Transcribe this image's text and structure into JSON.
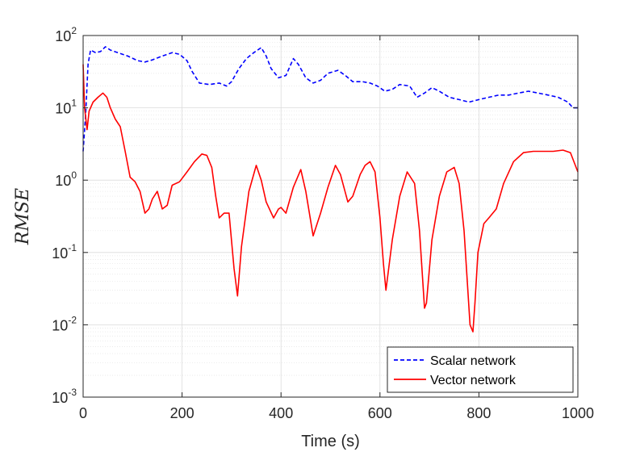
{
  "chart_data": {
    "type": "line",
    "xlabel": "Time (s)",
    "ylabel": "RMSE",
    "x_range": [
      0,
      1000
    ],
    "y_range": [
      0.001,
      100
    ],
    "y_scale": "log",
    "grid": true,
    "minor_grid": true,
    "legend_position": "bottom-right",
    "x_ticks": [
      {
        "value": 0,
        "label": "0"
      },
      {
        "value": 200,
        "label": "200"
      },
      {
        "value": 400,
        "label": "400"
      },
      {
        "value": 600,
        "label": "600"
      },
      {
        "value": 800,
        "label": "800"
      },
      {
        "value": 1000,
        "label": "1000"
      }
    ],
    "y_ticks": [
      {
        "value": 100,
        "base": "10",
        "exp": "2"
      },
      {
        "value": 10,
        "base": "10",
        "exp": "1"
      },
      {
        "value": 1,
        "base": "10",
        "exp": "0"
      },
      {
        "value": 0.1,
        "base": "10",
        "exp": "-1"
      },
      {
        "value": 0.01,
        "base": "10",
        "exp": "-2"
      },
      {
        "value": 0.001,
        "base": "10",
        "exp": "-3"
      }
    ],
    "series": [
      {
        "name": "Scalar network",
        "color": "#0000ff",
        "dash": "dashed",
        "x": [
          0,
          5,
          10,
          15,
          25,
          35,
          45,
          55,
          70,
          90,
          110,
          125,
          140,
          160,
          180,
          195,
          210,
          220,
          235,
          255,
          275,
          290,
          300,
          315,
          330,
          345,
          360,
          370,
          380,
          395,
          410,
          425,
          435,
          450,
          465,
          480,
          495,
          515,
          530,
          545,
          565,
          580,
          595,
          610,
          625,
          640,
          660,
          675,
          690,
          705,
          720,
          740,
          760,
          780,
          800,
          820,
          840,
          860,
          880,
          900,
          920,
          940,
          960,
          980,
          990,
          1000
        ],
        "y": [
          2.5,
          8,
          40,
          63,
          58,
          60,
          70,
          63,
          58,
          52,
          45,
          43,
          46,
          52,
          58,
          55,
          45,
          32,
          22,
          21,
          22,
          20,
          23,
          35,
          48,
          58,
          68,
          52,
          35,
          26,
          28,
          48,
          40,
          26,
          22,
          24,
          30,
          33,
          28,
          23,
          23,
          22,
          20,
          17,
          18,
          21,
          20,
          14,
          16,
          19,
          17,
          14,
          13,
          12,
          13,
          14,
          15,
          15,
          16,
          17,
          16,
          15,
          14,
          12,
          10,
          10
        ]
      },
      {
        "name": "Vector network",
        "color": "#ff0000",
        "dash": "solid",
        "x": [
          0,
          3,
          8,
          12,
          20,
          30,
          40,
          48,
          55,
          65,
          75,
          85,
          95,
          105,
          115,
          125,
          133,
          140,
          150,
          160,
          170,
          180,
          195,
          210,
          225,
          240,
          250,
          260,
          268,
          275,
          285,
          295,
          305,
          312,
          320,
          335,
          350,
          360,
          370,
          385,
          395,
          400,
          410,
          425,
          440,
          450,
          465,
          480,
          495,
          510,
          520,
          535,
          545,
          560,
          570,
          580,
          590,
          600,
          607,
          612,
          625,
          640,
          655,
          670,
          680,
          690,
          694,
          705,
          720,
          735,
          750,
          760,
          770,
          782,
          788,
          792,
          798,
          810,
          820,
          835,
          850,
          870,
          890,
          910,
          930,
          950,
          970,
          985,
          1000
        ],
        "y": [
          40,
          10,
          5,
          9,
          12,
          14,
          16,
          14,
          10,
          7,
          5.5,
          2.5,
          1.1,
          0.95,
          0.7,
          0.35,
          0.4,
          0.55,
          0.7,
          0.4,
          0.45,
          0.85,
          0.95,
          1.3,
          1.8,
          2.3,
          2.2,
          1.5,
          0.6,
          0.3,
          0.35,
          0.35,
          0.06,
          0.025,
          0.12,
          0.7,
          1.6,
          1.0,
          0.5,
          0.3,
          0.4,
          0.42,
          0.35,
          0.8,
          1.4,
          0.7,
          0.17,
          0.35,
          0.8,
          1.6,
          1.2,
          0.5,
          0.6,
          1.2,
          1.6,
          1.8,
          1.3,
          0.3,
          0.07,
          0.03,
          0.15,
          0.6,
          1.3,
          0.9,
          0.2,
          0.017,
          0.02,
          0.15,
          0.6,
          1.3,
          1.5,
          0.9,
          0.2,
          0.01,
          0.008,
          0.02,
          0.1,
          0.25,
          0.3,
          0.4,
          0.9,
          1.8,
          2.4,
          2.5,
          2.5,
          2.5,
          2.6,
          2.4,
          1.3
        ]
      }
    ]
  }
}
